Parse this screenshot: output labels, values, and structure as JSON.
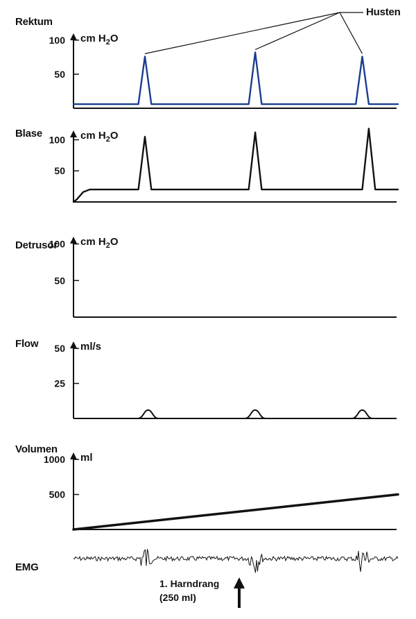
{
  "chart_data": [
    {
      "type": "line",
      "title": "Rektum",
      "ylabel": "cm H2O",
      "yticks": [
        50,
        100
      ],
      "ylim": [
        0,
        110
      ],
      "color": "#1a3d8f",
      "series": [
        {
          "x": [
            0,
            0.2,
            0.22,
            0.24,
            0.5,
            0.54,
            0.56,
            0.58,
            0.84,
            0.87,
            0.89,
            0.91,
            1.0
          ],
          "values": [
            6,
            6,
            76,
            6,
            6,
            6,
            82,
            6,
            6,
            6,
            76,
            6,
            6
          ]
        }
      ],
      "annotation": {
        "text": "Husten",
        "points_to_peaks": [
          0.22,
          0.56,
          0.89
        ]
      }
    },
    {
      "type": "line",
      "title": "Blase",
      "ylabel": "cm H2O",
      "yticks": [
        50,
        100
      ],
      "ylim": [
        0,
        115
      ],
      "color": "#111111",
      "series": [
        {
          "x": [
            0,
            0.01,
            0.02,
            0.03,
            0.05,
            0.2,
            0.22,
            0.24,
            0.54,
            0.56,
            0.58,
            0.89,
            0.91,
            0.93,
            1.0
          ],
          "values": [
            0,
            4,
            10,
            16,
            20,
            20,
            105,
            20,
            20,
            112,
            20,
            20,
            118,
            20,
            20
          ]
        }
      ]
    },
    {
      "type": "line",
      "title": "Detrusor",
      "ylabel": "cm H2O",
      "yticks": [
        50,
        100
      ],
      "ylim": [
        0,
        110
      ],
      "color": "#111111",
      "series": []
    },
    {
      "type": "line",
      "title": "Flow",
      "ylabel": "ml/s",
      "yticks": [
        25,
        50
      ],
      "ylim": [
        0,
        55
      ],
      "color": "#111111",
      "series": [
        {
          "bumps_at": [
            0.23,
            0.56,
            0.89
          ],
          "bump_height": 6,
          "baseline": 0
        }
      ]
    },
    {
      "type": "line",
      "title": "Volumen",
      "ylabel": "ml",
      "yticks": [
        500,
        1000
      ],
      "ylim": [
        0,
        1100
      ],
      "color": "#111111",
      "series": [
        {
          "x": [
            0,
            1
          ],
          "values": [
            0,
            500
          ]
        }
      ]
    },
    {
      "type": "line",
      "title": "EMG",
      "ylabel": "",
      "yticks": [],
      "color": "#111111",
      "series": [
        {
          "bursts_at": [
            0.22,
            0.56,
            0.89
          ]
        }
      ],
      "annotation": {
        "text_line1": "1. Harndrang",
        "text_line2": "(250 ml)",
        "at_x": 0.54
      }
    }
  ]
}
